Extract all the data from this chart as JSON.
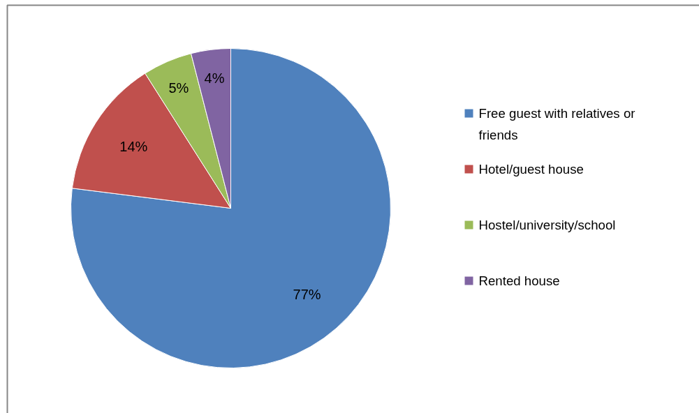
{
  "chart_data": {
    "type": "pie",
    "categories": [
      "Free guest with relatives or friends",
      "Hotel/guest house",
      "Hostel/university/school",
      "Rented house"
    ],
    "values": [
      77,
      14,
      5,
      4
    ],
    "colors": [
      "#4f81bd",
      "#c0504d",
      "#9bbb59",
      "#8064a2"
    ],
    "value_labels": [
      "77%",
      "14%",
      "5%",
      "4%"
    ],
    "legend": "right"
  }
}
